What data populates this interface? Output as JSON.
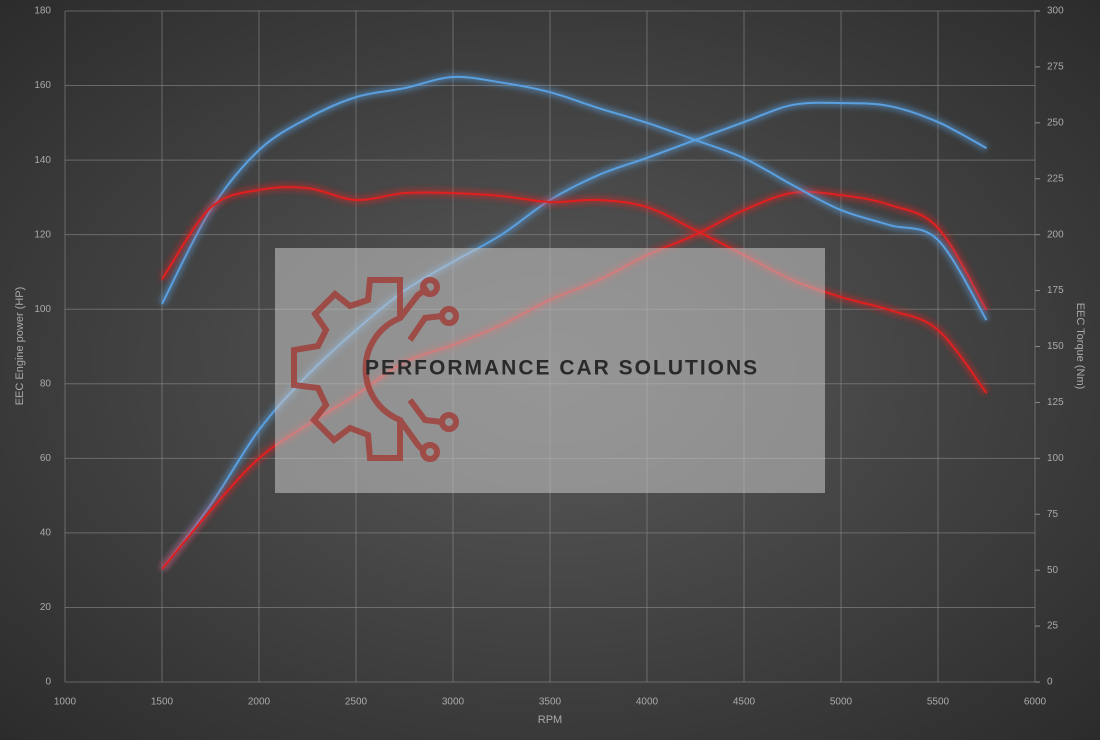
{
  "chart_data": {
    "type": "line",
    "x_label": "RPM",
    "y_label": "EEC Engine power (HP)",
    "y2_label": "EEC Torque (Nm)",
    "watermark": "PERFORMANCE CAR SOLUTIONS",
    "x": [
      1500,
      1750,
      2000,
      2250,
      2500,
      2750,
      3000,
      3250,
      3500,
      3750,
      4000,
      4250,
      4500,
      4750,
      5000,
      5250,
      5500,
      5750
    ],
    "series": [
      {
        "color": "#5aa0e0",
        "axis": "y",
        "values": [
          30.3,
          47.5,
          67.6,
          82.3,
          94.4,
          105,
          112.7,
          120,
          129.3,
          136,
          140.6,
          145.4,
          150.2,
          154.8,
          155.3,
          154.5,
          150.2,
          143.2
        ]
      },
      {
        "color": "#e02020",
        "axis": "y",
        "values": [
          30.3,
          46,
          60,
          69,
          77,
          85.8,
          90.4,
          95.8,
          102.5,
          107.8,
          114.5,
          120,
          126.6,
          131.2,
          130.6,
          128,
          121.8,
          99.8
        ]
      },
      {
        "color": "#5aa0e0",
        "axis": "y2",
        "values": [
          169,
          211,
          237.8,
          252,
          261.5,
          265.5,
          270.5,
          268,
          263.7,
          256.6,
          250,
          242.3,
          234.2,
          222.2,
          211,
          204.3,
          197.6,
          161.8
        ]
      },
      {
        "color": "#e02020",
        "axis": "y2",
        "values": [
          180,
          212,
          220,
          220.8,
          215.5,
          218.6,
          218.6,
          217.3,
          214.6,
          215.5,
          212.3,
          202,
          190.9,
          179.7,
          172.1,
          166.3,
          157.4,
          129.2
        ]
      }
    ],
    "xlim": [
      1000,
      6000
    ],
    "xticks": [
      1000,
      1500,
      2000,
      2500,
      3000,
      3500,
      4000,
      4500,
      5000,
      5500,
      6000
    ],
    "ylim": [
      0,
      180
    ],
    "yticks": [
      0,
      20,
      40,
      60,
      80,
      100,
      120,
      140,
      160,
      180
    ],
    "y2lim": [
      0,
      300
    ],
    "y2ticks": [
      0,
      25,
      50,
      75,
      100,
      125,
      150,
      175,
      200,
      225,
      250,
      275,
      300
    ],
    "grid": true
  }
}
